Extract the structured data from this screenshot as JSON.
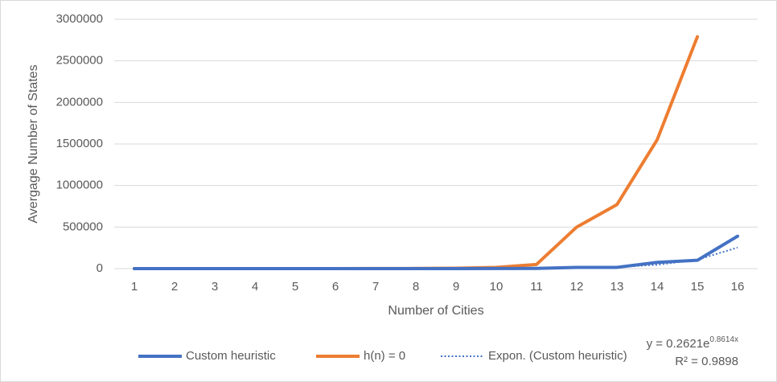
{
  "chart_data": {
    "type": "line",
    "x_label": "Number of Cities",
    "y_label": "Avergage Number of States",
    "categories": [
      "1",
      "2",
      "3",
      "4",
      "5",
      "6",
      "7",
      "8",
      "9",
      "10",
      "11",
      "12",
      "13",
      "14",
      "15",
      "16"
    ],
    "series": [
      {
        "name": "Custom heuristic",
        "color": "#4472c4",
        "style": "solid",
        "values": [
          1,
          2,
          5,
          10,
          20,
          40,
          80,
          200,
          500,
          1000,
          3000,
          15000,
          15000,
          75000,
          100000,
          390000
        ]
      },
      {
        "name": "h(n) = 0",
        "color": "#ed7d31",
        "style": "solid",
        "values": [
          1,
          3,
          10,
          30,
          100,
          300,
          800,
          2000,
          5000,
          15000,
          50000,
          500000,
          770000,
          1550000,
          2790000,
          null
        ]
      },
      {
        "name": "Expon. (Custom heuristic)",
        "color": "#4472c4",
        "style": "dotted",
        "values": [
          0.6,
          1.5,
          3.5,
          8.2,
          19.5,
          46,
          110,
          259,
          613,
          1450,
          3430,
          8100,
          19200,
          45300,
          107000,
          253000
        ]
      }
    ],
    "annotation": {
      "equation": "y = 0.2621e",
      "exponent": "0.8614x",
      "r_squared": "R² = 0.9898"
    },
    "ylim": [
      0,
      3000000
    ],
    "yticks": [
      0,
      500000,
      1000000,
      1500000,
      2000000,
      2500000,
      3000000
    ],
    "grid": true
  }
}
